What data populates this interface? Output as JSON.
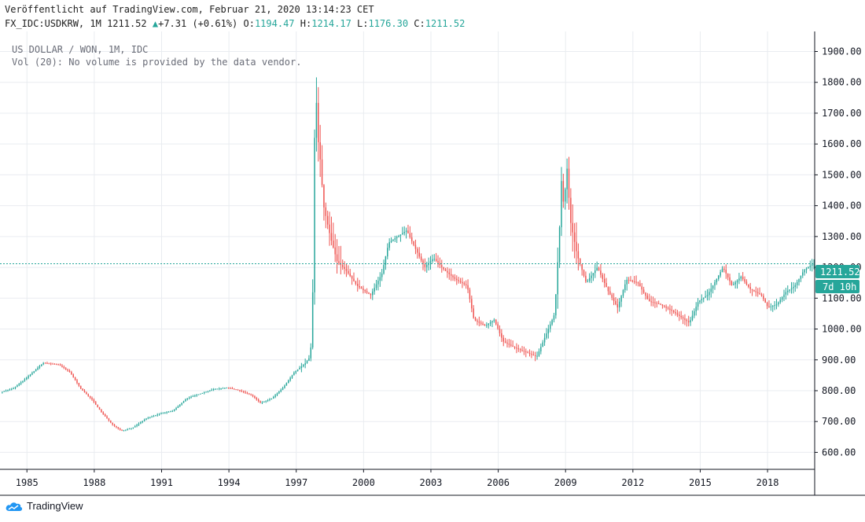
{
  "header": {
    "published": "Veröffentlicht auf TradingView.com, Februar 21, 2020 13:14:23 CET",
    "symbol": "FX_IDC:USDKRW, 1M",
    "last": "1211.52",
    "change": "+7.31 (+0.61%)",
    "o_label": "O:",
    "o_value": "1194.47",
    "h_label": "H:",
    "h_value": "1214.17",
    "l_label": "L:",
    "l_value": "1176.30",
    "c_label": "C:",
    "c_value": "1211.52"
  },
  "legend": {
    "title": "US DOLLAR / WON, 1M, IDC",
    "volume": "Vol (20): No volume is provided by the data vendor."
  },
  "price_label": "1211.52",
  "countdown_label": "7d 10h",
  "brand": "TradingView",
  "colors": {
    "up": "#26a69a",
    "down": "#ef5350",
    "grid": "#e9ecf0",
    "axis": "#131722",
    "price_line": "#26a69a"
  },
  "chart_data": {
    "type": "candlestick",
    "title": "US DOLLAR / WON, 1M, IDC",
    "x_ticks": [
      "1985",
      "1988",
      "1991",
      "1994",
      "1997",
      "2000",
      "2003",
      "2006",
      "2009",
      "2012",
      "2015",
      "2018"
    ],
    "y_ticks": [
      "600.00",
      "700.00",
      "800.00",
      "900.00",
      "1000.00",
      "1100.00",
      "1200.00",
      "1300.00",
      "1400.00",
      "1500.00",
      "1600.00",
      "1700.00",
      "1800.00",
      "1900.00"
    ],
    "xlim": [
      1983.8,
      2020.1
    ],
    "ylim": [
      545,
      1965
    ],
    "last_price": 1211.52,
    "series": [
      {
        "values": [
          [
            1983.9,
            795
          ],
          [
            1984.5,
            808
          ],
          [
            1985.2,
            850
          ],
          [
            1985.8,
            890
          ],
          [
            1986.5,
            885
          ],
          [
            1987.0,
            860
          ],
          [
            1987.5,
            805
          ],
          [
            1988.0,
            770
          ],
          [
            1988.4,
            730
          ],
          [
            1988.9,
            690
          ],
          [
            1989.3,
            670
          ],
          [
            1989.8,
            680
          ],
          [
            1990.4,
            710
          ],
          [
            1991.0,
            725
          ],
          [
            1991.6,
            735
          ],
          [
            1992.2,
            775
          ],
          [
            1992.8,
            790
          ],
          [
            1993.4,
            805
          ],
          [
            1994.0,
            810
          ],
          [
            1994.6,
            800
          ],
          [
            1995.1,
            785
          ],
          [
            1995.5,
            760
          ],
          [
            1996.0,
            775
          ],
          [
            1996.5,
            810
          ],
          [
            1997.0,
            860
          ],
          [
            1997.5,
            890
          ],
          [
            1997.7,
            910
          ],
          [
            1997.8,
            1000
          ],
          [
            1997.87,
            1500
          ],
          [
            1997.92,
            1700
          ],
          [
            1997.96,
            1850
          ],
          [
            1998.0,
            1650
          ],
          [
            1998.15,
            1550
          ],
          [
            1998.3,
            1400
          ],
          [
            1998.6,
            1300
          ],
          [
            1998.9,
            1220
          ],
          [
            1999.3,
            1190
          ],
          [
            1999.8,
            1140
          ],
          [
            2000.4,
            1110
          ],
          [
            2000.9,
            1180
          ],
          [
            2001.2,
            1280
          ],
          [
            2001.6,
            1300
          ],
          [
            2002.0,
            1320
          ],
          [
            2002.4,
            1260
          ],
          [
            2002.8,
            1200
          ],
          [
            2003.2,
            1230
          ],
          [
            2003.7,
            1190
          ],
          [
            2004.2,
            1160
          ],
          [
            2004.7,
            1140
          ],
          [
            2005.0,
            1030
          ],
          [
            2005.5,
            1010
          ],
          [
            2005.9,
            1030
          ],
          [
            2006.3,
            960
          ],
          [
            2006.8,
            940
          ],
          [
            2007.3,
            925
          ],
          [
            2007.8,
            910
          ],
          [
            2008.2,
            980
          ],
          [
            2008.6,
            1050
          ],
          [
            2008.8,
            1300
          ],
          [
            2008.9,
            1480
          ],
          [
            2009.0,
            1400
          ],
          [
            2009.15,
            1520
          ],
          [
            2009.3,
            1350
          ],
          [
            2009.6,
            1240
          ],
          [
            2010.0,
            1150
          ],
          [
            2010.5,
            1200
          ],
          [
            2011.0,
            1120
          ],
          [
            2011.4,
            1070
          ],
          [
            2011.8,
            1160
          ],
          [
            2012.3,
            1150
          ],
          [
            2012.8,
            1090
          ],
          [
            2013.3,
            1080
          ],
          [
            2013.8,
            1060
          ],
          [
            2014.2,
            1040
          ],
          [
            2014.6,
            1020
          ],
          [
            2015.0,
            1090
          ],
          [
            2015.4,
            1110
          ],
          [
            2015.8,
            1160
          ],
          [
            2016.1,
            1200
          ],
          [
            2016.5,
            1140
          ],
          [
            2016.9,
            1170
          ],
          [
            2017.3,
            1130
          ],
          [
            2017.8,
            1110
          ],
          [
            2018.1,
            1070
          ],
          [
            2018.5,
            1080
          ],
          [
            2018.9,
            1120
          ],
          [
            2019.3,
            1140
          ],
          [
            2019.7,
            1190
          ],
          [
            2020.1,
            1211.52
          ]
        ]
      }
    ]
  }
}
